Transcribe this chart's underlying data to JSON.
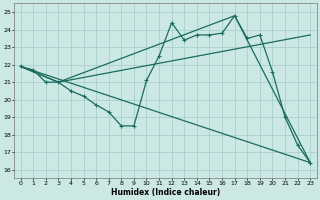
{
  "xlabel": "Humidex (Indice chaleur)",
  "xlim": [
    -0.5,
    23.5
  ],
  "ylim": [
    15.5,
    25.5
  ],
  "yticks": [
    16,
    17,
    18,
    19,
    20,
    21,
    22,
    23,
    24,
    25
  ],
  "xticks": [
    0,
    1,
    2,
    3,
    4,
    5,
    6,
    7,
    8,
    9,
    10,
    11,
    12,
    13,
    14,
    15,
    16,
    17,
    18,
    19,
    20,
    21,
    22,
    23
  ],
  "background_color": "#cce8e4",
  "grid_color": "#aacfca",
  "line_color": "#1a6b60",
  "lines": [
    {
      "x": [
        0,
        1,
        2,
        3,
        4,
        5,
        6,
        7,
        8,
        9,
        10,
        11,
        12,
        13,
        14,
        15,
        16,
        17,
        18,
        19,
        20,
        21,
        22,
        23
      ],
      "y": [
        21.9,
        21.7,
        21.0,
        21.0,
        20.5,
        20.2,
        19.7,
        19.3,
        18.5,
        18.5,
        21.1,
        22.5,
        24.4,
        23.4,
        23.7,
        23.7,
        23.8,
        24.8,
        23.5,
        23.7,
        21.6,
        19.0,
        17.4,
        16.4
      ],
      "markers": true
    },
    {
      "x": [
        0,
        23
      ],
      "y": [
        21.9,
        16.4
      ],
      "markers": false
    },
    {
      "x": [
        0,
        3,
        17,
        23
      ],
      "y": [
        21.9,
        21.0,
        24.8,
        16.4
      ],
      "markers": false
    },
    {
      "x": [
        0,
        3,
        23
      ],
      "y": [
        21.9,
        21.0,
        23.7
      ],
      "markers": false
    }
  ]
}
